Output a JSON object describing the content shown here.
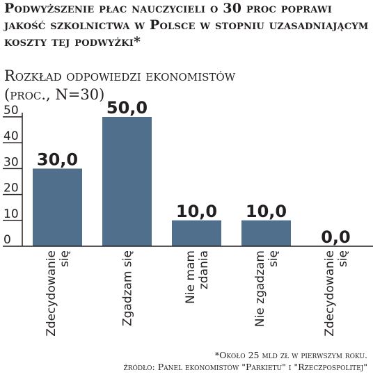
{
  "header": {
    "title": "Podwyższenie płac nauczycieli o 30 proc poprawi jakość szkolnictwa w Polsce w stopniu uzasadniającym koszty tej podwyżki*",
    "subtitle_line1": "Rozkład odpowiedzi ekonomistów",
    "subtitle_line2": "(proc., N=30)"
  },
  "footer": {
    "note": "*Około 25 mld zł w pierwszym roku.",
    "source": "źródło: Panel ekonomistów \"Parkietu\" i \"Rzeczpospolitej\""
  },
  "colors": {
    "bar": "#4f6f8d",
    "text": "#231f20",
    "grid": "#231f20"
  },
  "chart_data": {
    "type": "bar",
    "categories": [
      [
        "Zdecydowanie",
        "się"
      ],
      [
        "Zgadzam się"
      ],
      [
        "Nie mam",
        "zdania"
      ],
      [
        "Nie zgadzam",
        "się"
      ],
      [
        "Zdecydowanie",
        "się"
      ]
    ],
    "values": [
      30.0,
      50.0,
      10.0,
      10.0,
      0.0
    ],
    "value_labels": [
      "30,0",
      "50,0",
      "10,0",
      "10,0",
      "0,0"
    ],
    "yticks": [
      0,
      10,
      20,
      30,
      40,
      50
    ],
    "ylim": [
      0,
      50
    ],
    "xlabel": "",
    "ylabel": "",
    "grid": false
  }
}
